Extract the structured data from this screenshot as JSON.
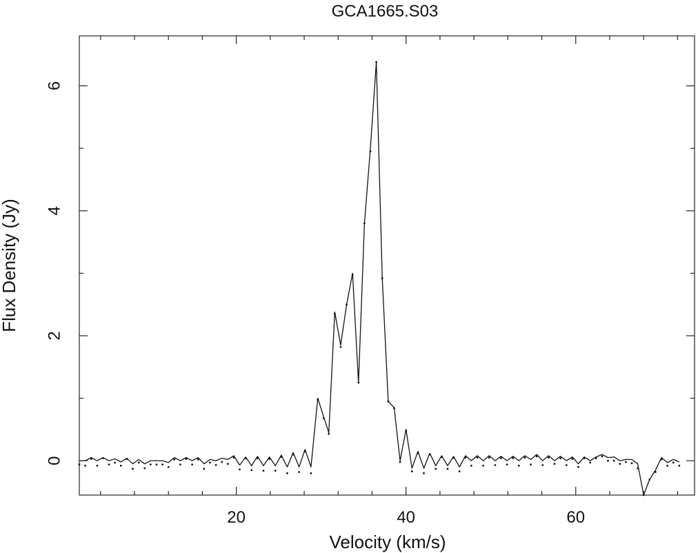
{
  "chart_data": {
    "type": "line",
    "title": "GCA1665.S03",
    "xlabel": "Velocity (km/s)",
    "ylabel": "Flux Density (Jy)",
    "xlim": [
      1.5,
      74
    ],
    "ylim": [
      -0.55,
      6.8
    ],
    "xticks": [
      20,
      40,
      60
    ],
    "yticks": [
      0,
      2,
      4,
      6
    ],
    "x_minor_step": 4,
    "y_minor_step": 1,
    "grid": false,
    "series": [
      {
        "style": "line",
        "x": [
          1.5,
          2.2,
          2.9,
          3.6,
          4.3,
          5.0,
          5.7,
          6.4,
          7.1,
          7.8,
          8.5,
          9.2,
          9.9,
          10.6,
          11.3,
          12.0,
          12.7,
          13.4,
          14.1,
          14.8,
          15.5,
          16.2,
          16.9,
          17.6,
          18.3,
          19.0,
          19.7,
          20.4,
          21.1,
          21.8,
          22.5,
          23.2,
          23.9,
          24.6,
          25.3,
          26.0,
          26.7,
          27.4,
          28.1,
          28.8,
          29.6,
          30.3,
          30.9,
          31.6,
          32.3,
          33.0,
          33.7,
          34.4,
          35.1,
          35.8,
          36.5,
          37.2,
          37.9,
          38.6,
          39.3,
          40.0,
          40.7,
          41.4,
          42.1,
          42.8,
          43.5,
          44.2,
          44.9,
          45.6,
          46.3,
          47.0,
          47.7,
          48.4,
          49.1,
          49.8,
          50.5,
          51.2,
          51.9,
          52.6,
          53.3,
          54.0,
          54.7,
          55.4,
          56.1,
          56.8,
          57.5,
          58.2,
          58.9,
          59.6,
          60.3,
          61.0,
          61.7,
          62.4,
          63.1,
          63.8,
          64.5,
          65.2,
          65.9,
          66.6,
          67.3,
          68.0,
          68.7,
          69.4,
          70.1,
          70.8,
          71.5,
          72.2
        ],
        "y": [
          0.0,
          0.0,
          0.05,
          0.0,
          0.05,
          0.0,
          0.03,
          -0.02,
          0.04,
          -0.05,
          0.02,
          -0.05,
          0.0,
          0.0,
          0.0,
          -0.03,
          0.05,
          0.0,
          0.05,
          0.0,
          0.05,
          -0.05,
          0.02,
          0.0,
          0.04,
          0.02,
          0.08,
          -0.07,
          0.06,
          -0.08,
          0.07,
          -0.08,
          0.06,
          -0.08,
          0.09,
          -0.1,
          0.13,
          -0.1,
          0.18,
          -0.1,
          1.0,
          0.7,
          0.45,
          2.38,
          1.85,
          2.5,
          3.0,
          1.25,
          3.8,
          5.0,
          6.38,
          2.92,
          0.95,
          0.85,
          0.0,
          0.5,
          -0.12,
          0.15,
          -0.12,
          0.12,
          -0.08,
          0.08,
          -0.08,
          0.07,
          -0.1,
          0.08,
          0.0,
          0.08,
          0.0,
          0.08,
          0.0,
          0.07,
          0.0,
          0.07,
          0.0,
          0.08,
          0.02,
          0.1,
          0.0,
          0.08,
          0.0,
          0.07,
          0.0,
          0.06,
          -0.05,
          0.06,
          0.0,
          0.06,
          0.1,
          0.05,
          0.06,
          0.0,
          0.02,
          0.02,
          -0.05,
          -0.55,
          -0.3,
          -0.15,
          0.05,
          -0.03,
          0.02,
          -0.02
        ]
      },
      {
        "style": "points",
        "x": [
          1.5,
          2.2,
          2.9,
          3.6,
          4.3,
          5.0,
          5.7,
          6.4,
          7.1,
          7.8,
          8.5,
          9.2,
          9.9,
          10.6,
          11.3,
          12.0,
          12.7,
          13.4,
          14.1,
          14.8,
          15.5,
          16.2,
          16.9,
          17.6,
          18.3,
          19.0,
          19.7,
          20.4,
          21.1,
          21.8,
          22.5,
          23.2,
          23.9,
          24.6,
          25.3,
          26.0,
          26.7,
          27.4,
          28.1,
          28.8,
          29.6,
          30.3,
          30.9,
          31.6,
          32.3,
          33.0,
          33.7,
          34.4,
          35.1,
          35.8,
          36.5,
          37.2,
          37.9,
          38.6,
          39.3,
          40.0,
          40.7,
          41.4,
          42.1,
          42.8,
          43.5,
          44.2,
          44.9,
          45.6,
          46.3,
          47.0,
          47.7,
          48.4,
          49.1,
          49.8,
          50.5,
          51.2,
          51.9,
          52.6,
          53.3,
          54.0,
          54.7,
          55.4,
          56.1,
          56.8,
          57.5,
          58.2,
          58.9,
          59.6,
          60.3,
          61.0,
          61.7,
          62.4,
          63.1,
          63.8,
          64.5,
          65.2,
          65.9,
          66.6,
          67.3,
          68.0,
          68.7,
          69.4,
          70.1,
          70.8,
          71.5,
          72.2
        ],
        "y": [
          -0.06,
          -0.08,
          0.03,
          -0.08,
          0.04,
          -0.06,
          -0.03,
          -0.08,
          0.03,
          -0.13,
          -0.03,
          -0.12,
          -0.06,
          -0.06,
          -0.06,
          -0.1,
          0.02,
          -0.06,
          0.03,
          -0.06,
          0.02,
          -0.13,
          -0.03,
          -0.07,
          -0.02,
          -0.05,
          0.05,
          -0.14,
          0.04,
          -0.15,
          0.04,
          -0.16,
          0.03,
          -0.16,
          0.06,
          -0.2,
          0.1,
          -0.18,
          0.15,
          -0.2,
          0.98,
          0.68,
          0.43,
          2.35,
          1.82,
          2.5,
          2.98,
          1.25,
          3.8,
          4.95,
          6.38,
          2.92,
          0.95,
          0.84,
          -0.02,
          0.48,
          -0.17,
          0.12,
          -0.2,
          0.1,
          -0.13,
          0.06,
          -0.13,
          0.05,
          -0.17,
          0.05,
          -0.08,
          0.05,
          -0.08,
          0.05,
          -0.07,
          0.04,
          -0.06,
          0.04,
          -0.08,
          0.05,
          -0.06,
          0.07,
          -0.07,
          0.05,
          -0.05,
          0.04,
          -0.07,
          0.03,
          -0.1,
          0.04,
          -0.03,
          0.04,
          0.07,
          0.0,
          0.0,
          -0.05,
          -0.02,
          -0.04,
          -0.12,
          -0.55,
          -0.3,
          -0.18,
          0.02,
          -0.08,
          -0.03,
          -0.08
        ]
      }
    ]
  }
}
